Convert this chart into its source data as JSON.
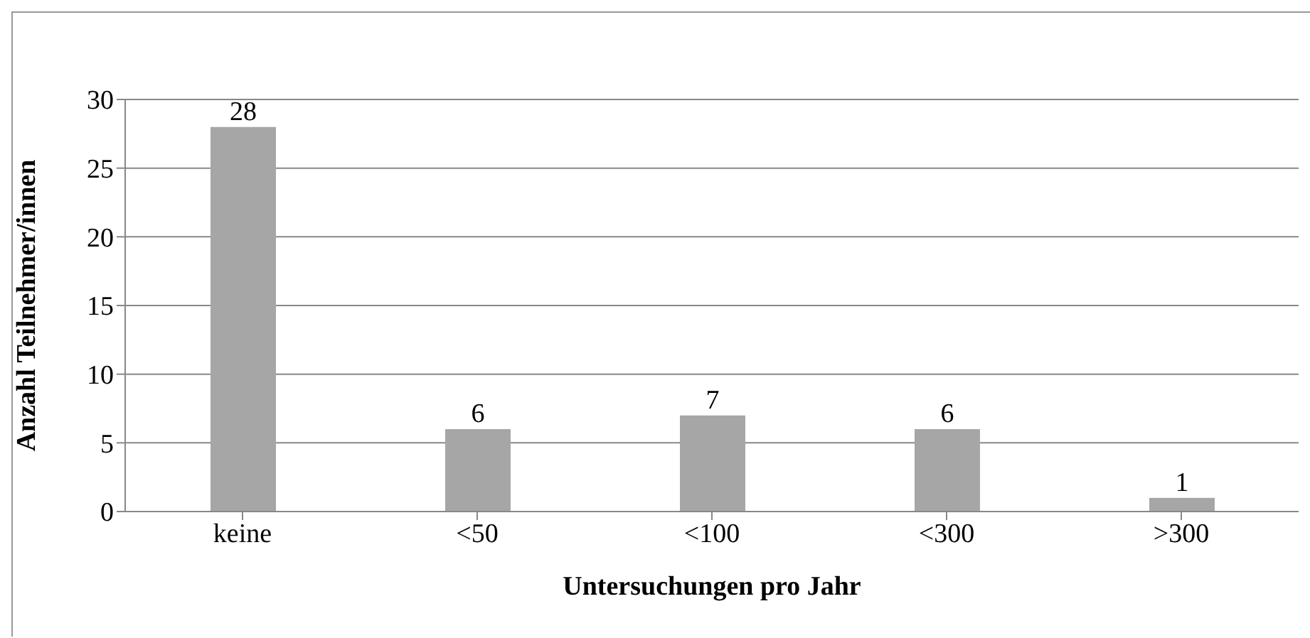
{
  "chart_data": {
    "type": "bar",
    "xlabel": "Untersuchungen pro Jahr",
    "ylabel": "Anzahl Teilnehmer/innen",
    "categories": [
      "keine",
      "<50",
      "<100",
      "<300",
      ">300"
    ],
    "values": [
      28,
      6,
      7,
      6,
      1
    ],
    "color": "#a6a6a6",
    "ylim": [
      0,
      30
    ],
    "yticks": [
      0,
      5,
      10,
      15,
      20,
      25,
      30
    ],
    "grid": "y",
    "data_labels": true
  }
}
